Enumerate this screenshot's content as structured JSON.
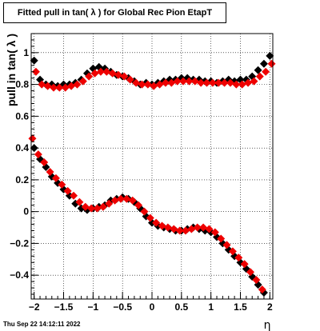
{
  "chart_data": {
    "type": "scatter",
    "title": "Fitted pull in tan( λ ) for Global Rec Pion EtapT",
    "xlabel": "η",
    "ylabel": "pull in tan( λ )",
    "xlim": [
      -2.05,
      2.05
    ],
    "ylim": [
      -0.55,
      1.12
    ],
    "grid": true,
    "x_ticks": [
      -2,
      -1.5,
      -1,
      -0.5,
      0,
      0.5,
      1,
      1.5,
      2
    ],
    "x_tick_labels": [
      "−2",
      "−1.5",
      "−1",
      "−0.5",
      "0",
      "0.5",
      "1",
      "1.5",
      "2"
    ],
    "y_ticks": [
      -0.4,
      -0.2,
      0,
      0.2,
      0.4,
      0.6,
      0.8,
      1
    ],
    "y_tick_labels": [
      "−0.4",
      "−0.2",
      "0",
      "0.2",
      "0.4",
      "0.6",
      "0.8",
      "1"
    ],
    "series": [
      {
        "color": "#000000",
        "marker": "diamond",
        "groups": [
          {
            "x": [
              -2.0,
              -1.9,
              -1.8,
              -1.7,
              -1.6,
              -1.5,
              -1.4,
              -1.3,
              -1.2,
              -1.1,
              -1.0,
              -0.9,
              -0.8,
              -0.7,
              -0.6,
              -0.5,
              -0.4,
              -0.3,
              -0.2,
              -0.1,
              0.0,
              0.1,
              0.2,
              0.3,
              0.4,
              0.5,
              0.6,
              0.7,
              0.8,
              0.9,
              1.0,
              1.1,
              1.2,
              1.3,
              1.4,
              1.5,
              1.6,
              1.7,
              1.8,
              1.9,
              2.0
            ],
            "y": [
              0.95,
              0.83,
              0.8,
              0.8,
              0.79,
              0.8,
              0.8,
              0.81,
              0.83,
              0.87,
              0.9,
              0.91,
              0.9,
              0.88,
              0.86,
              0.85,
              0.84,
              0.82,
              0.8,
              0.81,
              0.8,
              0.81,
              0.82,
              0.83,
              0.83,
              0.84,
              0.84,
              0.83,
              0.83,
              0.82,
              0.82,
              0.81,
              0.82,
              0.83,
              0.82,
              0.83,
              0.83,
              0.85,
              0.89,
              0.93,
              0.98
            ]
          },
          {
            "x": [
              -2.0,
              -1.9,
              -1.8,
              -1.7,
              -1.6,
              -1.5,
              -1.4,
              -1.3,
              -1.2,
              -1.1,
              -1.0,
              -0.9,
              -0.8,
              -0.7,
              -0.6,
              -0.5,
              -0.4,
              -0.3,
              -0.2,
              -0.1,
              0.0,
              0.1,
              0.2,
              0.3,
              0.4,
              0.5,
              0.6,
              0.7,
              0.8,
              0.9,
              1.0,
              1.1,
              1.2,
              1.3,
              1.4,
              1.5,
              1.6,
              1.7,
              1.8,
              1.9
            ],
            "y": [
              0.4,
              0.33,
              0.28,
              0.22,
              0.18,
              0.14,
              0.1,
              0.05,
              0.02,
              0.01,
              0.02,
              0.03,
              0.04,
              0.07,
              0.08,
              0.09,
              0.08,
              0.06,
              0.02,
              -0.03,
              -0.07,
              -0.09,
              -0.1,
              -0.11,
              -0.12,
              -0.12,
              -0.11,
              -0.1,
              -0.11,
              -0.12,
              -0.13,
              -0.16,
              -0.2,
              -0.24,
              -0.28,
              -0.32,
              -0.36,
              -0.41,
              -0.46,
              -0.51
            ]
          }
        ]
      },
      {
        "color": "#ee0000",
        "marker": "diamond",
        "groups": [
          {
            "x": [
              -1.97,
              -1.87,
              -1.77,
              -1.67,
              -1.57,
              -1.47,
              -1.37,
              -1.27,
              -1.17,
              -1.07,
              -0.97,
              -0.87,
              -0.77,
              -0.67,
              -0.57,
              -0.47,
              -0.37,
              -0.27,
              -0.17,
              -0.07,
              0.03,
              0.13,
              0.23,
              0.33,
              0.43,
              0.53,
              0.63,
              0.73,
              0.83,
              0.93,
              1.03,
              1.13,
              1.23,
              1.33,
              1.43,
              1.53,
              1.63,
              1.73,
              1.83,
              1.93,
              2.03
            ],
            "y": [
              0.88,
              0.8,
              0.79,
              0.78,
              0.78,
              0.78,
              0.79,
              0.8,
              0.82,
              0.85,
              0.87,
              0.88,
              0.88,
              0.87,
              0.86,
              0.85,
              0.83,
              0.81,
              0.8,
              0.8,
              0.79,
              0.8,
              0.81,
              0.81,
              0.82,
              0.82,
              0.82,
              0.82,
              0.81,
              0.81,
              0.81,
              0.81,
              0.81,
              0.81,
              0.8,
              0.8,
              0.81,
              0.82,
              0.85,
              0.88,
              0.93
            ]
          },
          {
            "x": [
              -2.03,
              -1.93,
              -1.83,
              -1.73,
              -1.63,
              -1.53,
              -1.43,
              -1.33,
              -1.23,
              -1.13,
              -1.03,
              -0.93,
              -0.83,
              -0.73,
              -0.63,
              -0.53,
              -0.43,
              -0.33,
              -0.23,
              -0.13,
              -0.03,
              0.07,
              0.17,
              0.27,
              0.37,
              0.47,
              0.57,
              0.67,
              0.77,
              0.87,
              0.97,
              1.07,
              1.17,
              1.27,
              1.37,
              1.47,
              1.57,
              1.67,
              1.77,
              1.87
            ],
            "y": [
              0.46,
              0.36,
              0.31,
              0.25,
              0.21,
              0.17,
              0.13,
              0.1,
              0.06,
              0.03,
              0.02,
              0.02,
              0.03,
              0.05,
              0.07,
              0.08,
              0.08,
              0.07,
              0.04,
              0.0,
              -0.04,
              -0.07,
              -0.09,
              -0.1,
              -0.11,
              -0.12,
              -0.12,
              -0.11,
              -0.1,
              -0.1,
              -0.11,
              -0.13,
              -0.17,
              -0.21,
              -0.25,
              -0.29,
              -0.33,
              -0.38,
              -0.43,
              -0.49
            ]
          }
        ]
      }
    ]
  },
  "footer": {
    "timestamp": "Thu Sep 22 14:12:11 2022"
  }
}
